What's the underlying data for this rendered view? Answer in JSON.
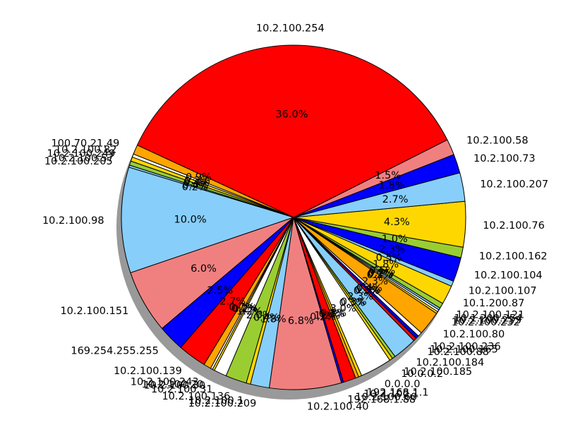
{
  "chart_data": {
    "type": "pie",
    "shadow": true,
    "start_angle_deg": 15,
    "direction": "counterclockwise",
    "slices": [
      {
        "label": "10.2.100.73",
        "pct": "1.8%",
        "value": 1.8,
        "color": "#0000ff"
      },
      {
        "label": "10.2.100.58",
        "pct": "1.5%",
        "value": 1.5,
        "color": "#f08080"
      },
      {
        "label": "10.2.100.254",
        "pct": "36.0%",
        "value": 36.0,
        "color": "#ff0000"
      },
      {
        "label": "100.70.21.49",
        "pct": "0.9%",
        "value": 0.9,
        "color": "#ffa500"
      },
      {
        "label": "10.2.100.82",
        "pct": "0.3%",
        "value": 0.3,
        "color": "#ffffff"
      },
      {
        "label": "10.2.100.249",
        "pct": "0.4%",
        "value": 0.4,
        "color": "#ffd700"
      },
      {
        "label": "10.2.100.57",
        "pct": "0.4%",
        "value": 0.4,
        "color": "#9acd32"
      },
      {
        "label": "10.2.100.205",
        "pct": "0.2%",
        "value": 0.2,
        "color": "#87cefa"
      },
      {
        "label": "10.2.100.98",
        "pct": "10.0%",
        "value": 10.0,
        "color": "#87cefa"
      },
      {
        "label": "10.2.100.151",
        "pct": "6.0%",
        "value": 6.0,
        "color": "#f08080"
      },
      {
        "label": "169.254.255.255",
        "pct": "2.5%",
        "value": 2.5,
        "color": "#0000ff"
      },
      {
        "label": "10.2.100.139",
        "pct": "2.7%",
        "value": 2.7,
        "color": "#ff0000"
      },
      {
        "label": "10.2.100.243",
        "pct": "0.7%",
        "value": 0.7,
        "color": "#ffa500"
      },
      {
        "label": "10.2.100.20",
        "pct": "0.2%",
        "value": 0.2,
        "color": "#ffffff"
      },
      {
        "label": "10.2.100.30",
        "pct": "0.2%",
        "value": 0.2,
        "color": "#ffd700"
      },
      {
        "label": "10.2.100.31",
        "pct": "1.2%",
        "value": 1.2,
        "color": "#ffffff"
      },
      {
        "label": "10.2.100.136",
        "pct": "2.0%",
        "value": 2.0,
        "color": "#9acd32"
      },
      {
        "label": "10.2.100.1",
        "pct": "0.4%",
        "value": 0.4,
        "color": "#ffd700"
      },
      {
        "label": "10.2.100.209",
        "pct": "1.8%",
        "value": 1.8,
        "color": "#87cefa"
      },
      {
        "label": "10.2.100.40",
        "pct": "6.8%",
        "value": 6.8,
        "color": "#f08080"
      },
      {
        "label": "192.168.1.88",
        "pct": "0.2%",
        "value": 0.2,
        "color": "#0000ff"
      },
      {
        "label": "10.2.100.60",
        "pct": "1.2%",
        "value": 1.2,
        "color": "#ff0000"
      },
      {
        "label": "10.2.100.1",
        "pct": "0.3%",
        "value": 0.3,
        "color": "#ffa500"
      },
      {
        "label": "192.168.1.1",
        "pct": "0.3%",
        "value": 0.3,
        "color": "#ffd700"
      },
      {
        "label": "0.0.0.0",
        "pct": "3.0%",
        "value": 3.0,
        "color": "#ffffff"
      },
      {
        "label": "10.0.0.2",
        "pct": "0.3%",
        "value": 0.3,
        "color": "#ffd700"
      },
      {
        "label": "10.2.100.185",
        "pct": "0.3%",
        "value": 0.3,
        "color": "#9acd32"
      },
      {
        "label": "10.2.100.184",
        "pct": "2.3%",
        "value": 2.3,
        "color": "#87cefa"
      },
      {
        "label": "10.2.100.88",
        "pct": "0.3%",
        "value": 0.3,
        "color": "#ff0000"
      },
      {
        "label": "10.2.100.165",
        "pct": "0.3%",
        "value": 0.3,
        "color": "#0000ff"
      },
      {
        "label": "10.2.100.236",
        "pct": "0.4%",
        "value": 0.4,
        "color": "#ffffff"
      },
      {
        "label": "10.2.100.80",
        "pct": "2.3%",
        "value": 2.3,
        "color": "#ffa500"
      },
      {
        "label": "10.2.100.232",
        "pct": "0.2%",
        "value": 0.2,
        "color": "#ffd700"
      },
      {
        "label": "10.2.100.233",
        "pct": "0.2%",
        "value": 0.2,
        "color": "#ffffff"
      },
      {
        "label": "10.1.200.254",
        "pct": "0.2%",
        "value": 0.2,
        "color": "#87cefa"
      },
      {
        "label": "10.2.100.121",
        "pct": "0.5%",
        "value": 0.5,
        "color": "#9acd32"
      },
      {
        "label": "10.1.200.87",
        "pct": "1.8%",
        "value": 1.8,
        "color": "#ffd700"
      },
      {
        "label": "10.2.100.107",
        "pct": "0.5%",
        "value": 0.5,
        "color": "#87cefa"
      },
      {
        "label": "10.2.100.104",
        "pct": "2.3%",
        "value": 2.3,
        "color": "#0000ff"
      },
      {
        "label": "10.2.100.162",
        "pct": "1.0%",
        "value": 1.0,
        "color": "#9acd32"
      },
      {
        "label": "10.2.100.76",
        "pct": "4.3%",
        "value": 4.3,
        "color": "#ffd700"
      },
      {
        "label": "10.2.100.207",
        "pct": "2.7%",
        "value": 2.7,
        "color": "#87cefa"
      }
    ]
  }
}
